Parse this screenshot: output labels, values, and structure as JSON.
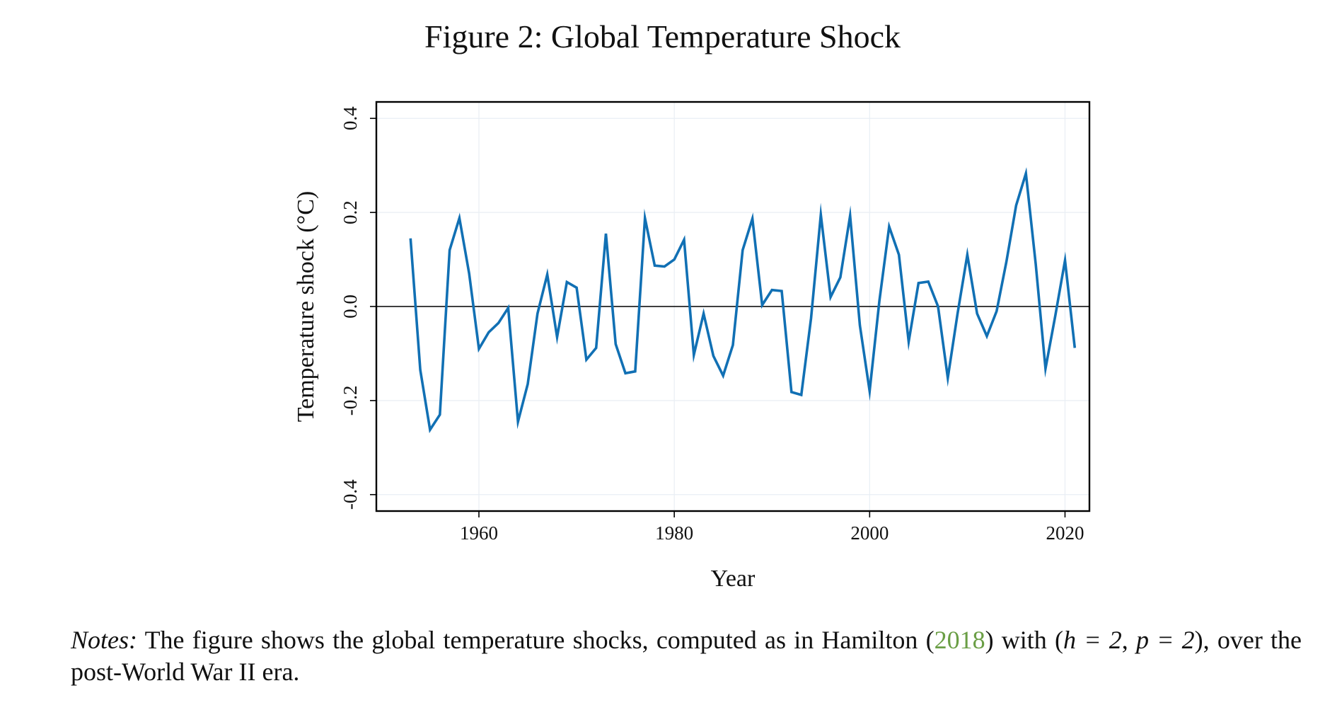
{
  "figure_title": "Figure 2: Global Temperature Shock",
  "colors": {
    "series_line": "#1170b4",
    "zero_line": "#000000",
    "grid": "#e9eef4",
    "frame": "#000000",
    "citation": "#6a9e45"
  },
  "notes": {
    "label": "Notes:",
    "text_before": "The figure shows the global temperature shocks, computed as in Hamilton (",
    "citation": "2018",
    "text_middle": ") with (",
    "h_expr": "h = 2",
    "comma": ", ",
    "p_expr": "p = 2",
    "text_after": "), over the post-World War II era."
  },
  "chart_data": {
    "type": "line",
    "title": "",
    "xlabel": "Year",
    "ylabel": "Temperature shock (°C)",
    "xlim": [
      1949.5,
      2022.5
    ],
    "ylim": [
      -0.435,
      0.435
    ],
    "xticks": [
      1960,
      1980,
      2000,
      2020
    ],
    "yticks": [
      -0.4,
      -0.2,
      0.0,
      0.2,
      0.4
    ],
    "ytick_labels": [
      "-0.4",
      "-0.2",
      "0.0",
      "0.2",
      "0.4"
    ],
    "grid": true,
    "zero_line": true,
    "legend": "none",
    "series": [
      {
        "x": [
          1953,
          1954,
          1955,
          1956,
          1957,
          1958,
          1959,
          1960,
          1961,
          1962,
          1963,
          1964,
          1965,
          1966,
          1967,
          1968,
          1969,
          1970,
          1971,
          1972,
          1973,
          1974,
          1975,
          1976,
          1977,
          1978,
          1979,
          1980,
          1981,
          1982,
          1983,
          1984,
          1985,
          1986,
          1987,
          1988,
          1989,
          1990,
          1991,
          1992,
          1993,
          1994,
          1995,
          1996,
          1997,
          1998,
          1999,
          2000,
          2001,
          2002,
          2003,
          2004,
          2005,
          2006,
          2007,
          2008,
          2009,
          2010,
          2011,
          2012,
          2013,
          2014,
          2015,
          2016,
          2017,
          2018,
          2019,
          2020,
          2021
        ],
        "values": [
          0.145,
          -0.135,
          -0.262,
          -0.23,
          0.12,
          0.188,
          0.07,
          -0.09,
          -0.055,
          -0.035,
          -0.003,
          -0.245,
          -0.165,
          -0.015,
          0.068,
          -0.065,
          0.052,
          0.04,
          -0.113,
          -0.088,
          0.155,
          -0.08,
          -0.142,
          -0.138,
          0.188,
          0.087,
          0.085,
          0.1,
          0.142,
          -0.103,
          -0.015,
          -0.105,
          -0.147,
          -0.082,
          0.12,
          0.187,
          0.003,
          0.035,
          0.033,
          -0.182,
          -0.188,
          -0.025,
          0.195,
          0.02,
          0.062,
          0.193,
          -0.04,
          -0.18,
          0.012,
          0.17,
          0.11,
          -0.075,
          0.05,
          0.053,
          0.0,
          -0.152,
          -0.015,
          0.11,
          -0.015,
          -0.063,
          -0.01,
          0.095,
          0.215,
          0.283,
          0.09,
          -0.132,
          -0.02,
          0.098,
          -0.088
        ]
      }
    ]
  }
}
